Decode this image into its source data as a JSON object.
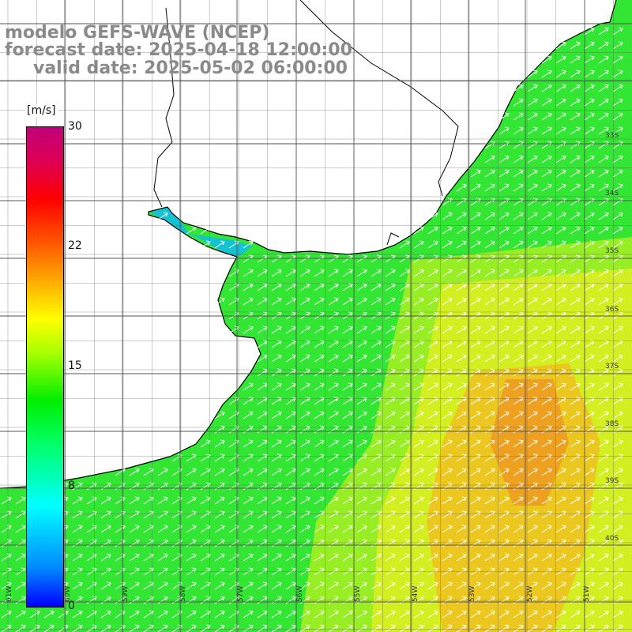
{
  "title": {
    "line1": "modelo GEFS-WAVE (NCEP)",
    "line2": "forecast date: 2025-04-18 12:00:00",
    "line3": "valid date: 2025-05-02 06:00:00"
  },
  "colorbar": {
    "unit": "[m/s]",
    "ticks": [
      "30",
      "22",
      "15",
      "8",
      "0"
    ],
    "min": 0,
    "max": 30,
    "colors": [
      "#0000ff",
      "#00ffff",
      "#00ee00",
      "#ffff00",
      "#ff0000",
      "#c0007a"
    ]
  },
  "map": {
    "lat_labels": [
      "33S",
      "34S",
      "35S",
      "36S",
      "37S",
      "38S",
      "39S",
      "40S"
    ],
    "lon_labels": [
      "61W",
      "60W",
      "59W",
      "58W",
      "57W",
      "56W",
      "55W",
      "54W",
      "53W",
      "52W",
      "51W"
    ],
    "land_color": "#ffffff",
    "arrow_color": "#ffffff",
    "grid_color": "#555555"
  }
}
